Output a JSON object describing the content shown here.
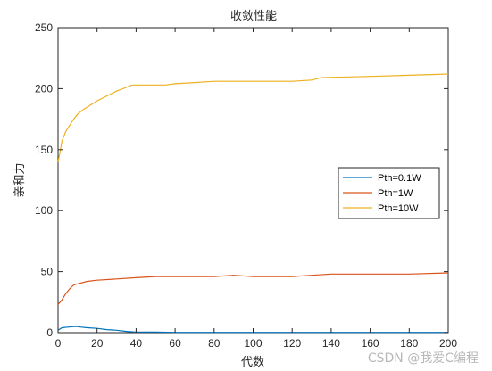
{
  "chart_data": {
    "type": "line",
    "title": "收敛性能",
    "xlabel": "代数",
    "ylabel": "亲和力",
    "xlim": [
      0,
      200
    ],
    "ylim": [
      0,
      250
    ],
    "xticks": [
      0,
      20,
      40,
      60,
      80,
      100,
      120,
      140,
      160,
      180,
      200
    ],
    "yticks": [
      0,
      50,
      100,
      150,
      200,
      250
    ],
    "grid": false,
    "legend_position": "center-right",
    "series": [
      {
        "name": "Pth=0.1W",
        "color": "#0072BD",
        "x": [
          0,
          2,
          5,
          8,
          10,
          12,
          15,
          20,
          25,
          30,
          35,
          40,
          50,
          60,
          80,
          100,
          120,
          140,
          160,
          180,
          200
        ],
        "y": [
          2,
          4,
          4.5,
          5,
          5,
          4.5,
          4,
          3.5,
          2.5,
          2,
          1,
          0.5,
          0.5,
          0.2,
          0.2,
          0.2,
          0.2,
          0.2,
          0.2,
          0.2,
          0.2
        ]
      },
      {
        "name": "Pth=1W",
        "color": "#D95319",
        "x": [
          0,
          2,
          4,
          6,
          8,
          10,
          15,
          20,
          30,
          40,
          50,
          60,
          70,
          80,
          90,
          100,
          110,
          120,
          130,
          140,
          160,
          180,
          200
        ],
        "y": [
          23,
          27,
          32,
          36,
          39,
          40,
          42,
          43,
          44,
          45,
          46,
          46,
          46,
          46,
          47,
          46,
          46,
          46,
          47,
          48,
          48,
          48,
          49
        ]
      },
      {
        "name": "Pth=10W",
        "color": "#EDB120",
        "x": [
          0,
          1,
          2,
          4,
          6,
          8,
          10,
          13,
          16,
          20,
          25,
          30,
          35,
          38,
          40,
          50,
          55,
          60,
          70,
          80,
          100,
          120,
          130,
          135,
          160,
          180,
          200
        ],
        "y": [
          140,
          148,
          157,
          165,
          170,
          175,
          179,
          183,
          186,
          190,
          194,
          198,
          201,
          203,
          203,
          203,
          203,
          204,
          205,
          206,
          206,
          206,
          207,
          209,
          210,
          211,
          212
        ]
      }
    ]
  },
  "watermark": "CSDN @我爱C编程"
}
